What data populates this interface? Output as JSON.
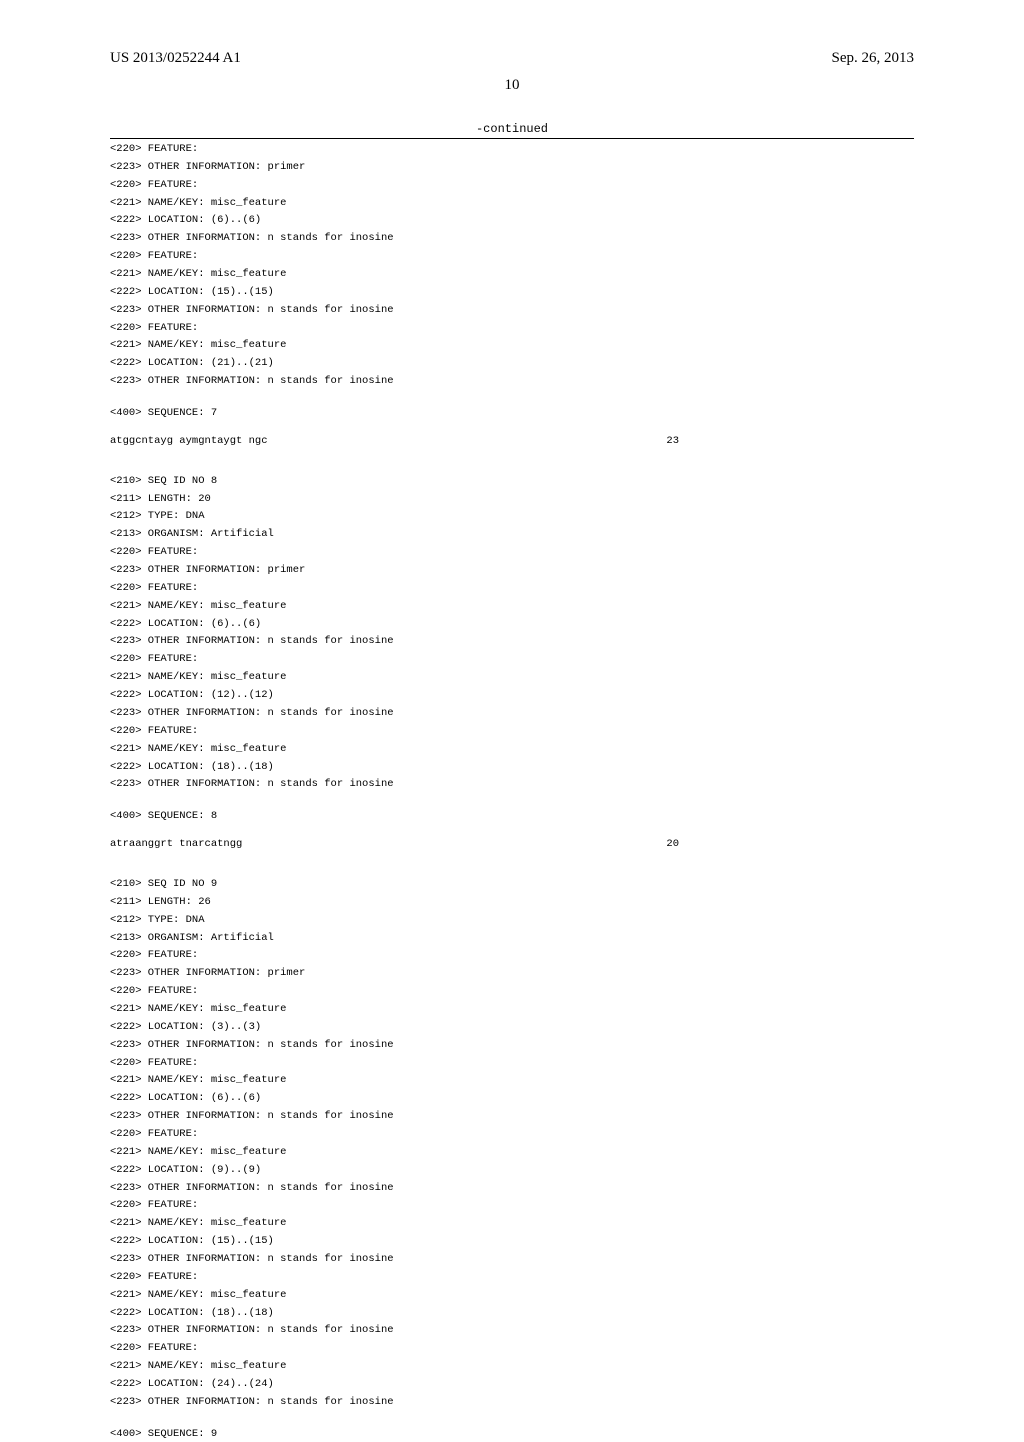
{
  "header": {
    "pub_number": "US 2013/0252244 A1",
    "pub_date": "Sep. 26, 2013"
  },
  "page_number": "10",
  "continued_label": "-continued",
  "seq7": {
    "lines": [
      "<220> FEATURE:",
      "<223> OTHER INFORMATION: primer",
      "<220> FEATURE:",
      "<221> NAME/KEY: misc_feature",
      "<222> LOCATION: (6)..(6)",
      "<223> OTHER INFORMATION: n stands for inosine",
      "<220> FEATURE:",
      "<221> NAME/KEY: misc_feature",
      "<222> LOCATION: (15)..(15)",
      "<223> OTHER INFORMATION: n stands for inosine",
      "<220> FEATURE:",
      "<221> NAME/KEY: misc_feature",
      "<222> LOCATION: (21)..(21)",
      "<223> OTHER INFORMATION: n stands for inosine"
    ],
    "seq_header": "<400> SEQUENCE: 7",
    "sequence": "atggcntayg aymgntaygt ngc",
    "length": "23"
  },
  "seq8": {
    "lines": [
      "<210> SEQ ID NO 8",
      "<211> LENGTH: 20",
      "<212> TYPE: DNA",
      "<213> ORGANISM: Artificial",
      "<220> FEATURE:",
      "<223> OTHER INFORMATION: primer",
      "<220> FEATURE:",
      "<221> NAME/KEY: misc_feature",
      "<222> LOCATION: (6)..(6)",
      "<223> OTHER INFORMATION: n stands for inosine",
      "<220> FEATURE:",
      "<221> NAME/KEY: misc_feature",
      "<222> LOCATION: (12)..(12)",
      "<223> OTHER INFORMATION: n stands for inosine",
      "<220> FEATURE:",
      "<221> NAME/KEY: misc_feature",
      "<222> LOCATION: (18)..(18)",
      "<223> OTHER INFORMATION: n stands for inosine"
    ],
    "seq_header": "<400> SEQUENCE: 8",
    "sequence": "atraanggrt tnarcatngg",
    "length": "20"
  },
  "seq9": {
    "lines": [
      "<210> SEQ ID NO 9",
      "<211> LENGTH: 26",
      "<212> TYPE: DNA",
      "<213> ORGANISM: Artificial",
      "<220> FEATURE:",
      "<223> OTHER INFORMATION: primer",
      "<220> FEATURE:",
      "<221> NAME/KEY: misc_feature",
      "<222> LOCATION: (3)..(3)",
      "<223> OTHER INFORMATION: n stands for inosine",
      "<220> FEATURE:",
      "<221> NAME/KEY: misc_feature",
      "<222> LOCATION: (6)..(6)",
      "<223> OTHER INFORMATION: n stands for inosine",
      "<220> FEATURE:",
      "<221> NAME/KEY: misc_feature",
      "<222> LOCATION: (9)..(9)",
      "<223> OTHER INFORMATION: n stands for inosine",
      "<220> FEATURE:",
      "<221> NAME/KEY: misc_feature",
      "<222> LOCATION: (15)..(15)",
      "<223> OTHER INFORMATION: n stands for inosine",
      "<220> FEATURE:",
      "<221> NAME/KEY: misc_feature",
      "<222> LOCATION: (18)..(18)",
      "<223> OTHER INFORMATION: n stands for inosine",
      "<220> FEATURE:",
      "<221> NAME/KEY: misc_feature",
      "<222> LOCATION: (24)..(24)",
      "<223> OTHER INFORMATION: n stands for inosine"
    ],
    "seq_header": "<400> SEQUENCE: 9"
  }
}
